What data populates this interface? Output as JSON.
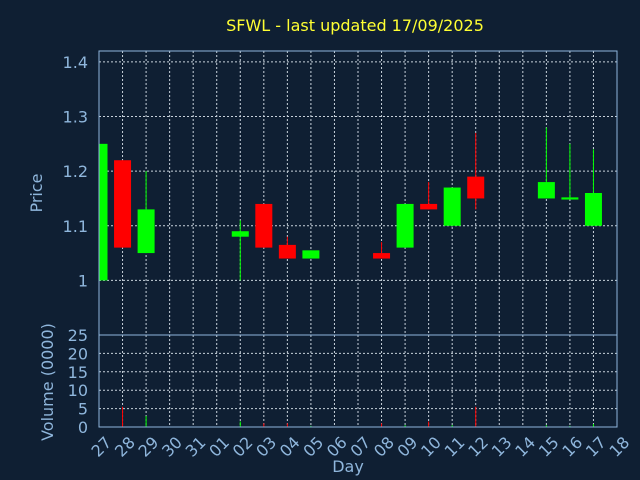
{
  "chart_data": {
    "type": "candlestick",
    "title": "SFWL - last updated 17/09/2025",
    "xlabel": "Day",
    "ylabel_price": "Price",
    "ylabel_volume": "Volume (0000)",
    "price_ylim": [
      0.9,
      1.42
    ],
    "price_ticks": [
      "1",
      "1.1",
      "1.2",
      "1.3",
      "1.4"
    ],
    "volume_ylim": [
      0,
      25
    ],
    "volume_ticks": [
      "0",
      "5",
      "10",
      "15",
      "20",
      "25"
    ],
    "grid": true,
    "colors": {
      "up": "#00ff00",
      "down": "#ff0000",
      "title": "#ffff33",
      "text": "#8fb6dc",
      "background": "#0f1f33"
    },
    "x_labels": [
      "27",
      "28",
      "29",
      "30",
      "31",
      "01",
      "02",
      "03",
      "04",
      "05",
      "06",
      "07",
      "08",
      "09",
      "10",
      "11",
      "12",
      "13",
      "14",
      "15",
      "16",
      "17",
      "18"
    ],
    "candles": [
      {
        "day": "27",
        "open": 1.0,
        "high": 1.25,
        "low": 1.0,
        "close": 1.25,
        "volume": 0.5
      },
      {
        "day": "28",
        "open": 1.22,
        "high": 1.22,
        "low": 1.06,
        "close": 1.06,
        "volume": 5.5
      },
      {
        "day": "29",
        "open": 1.05,
        "high": 1.2,
        "low": 1.05,
        "close": 1.13,
        "volume": 3.0
      },
      {
        "day": "02",
        "open": 1.08,
        "high": 1.11,
        "low": 1.0,
        "close": 1.09,
        "volume": 1.5
      },
      {
        "day": "03",
        "open": 1.14,
        "high": 1.14,
        "low": 1.06,
        "close": 1.06,
        "volume": 1.0
      },
      {
        "day": "04",
        "open": 1.065,
        "high": 1.08,
        "low": 1.04,
        "close": 1.04,
        "volume": 1.0
      },
      {
        "day": "05",
        "open": 1.04,
        "high": 1.055,
        "low": 1.04,
        "close": 1.055,
        "volume": 0.3
      },
      {
        "day": "08",
        "open": 1.05,
        "high": 1.07,
        "low": 1.04,
        "close": 1.04,
        "volume": 1.0
      },
      {
        "day": "09",
        "open": 1.06,
        "high": 1.14,
        "low": 1.06,
        "close": 1.14,
        "volume": 0.5
      },
      {
        "day": "10",
        "open": 1.14,
        "high": 1.18,
        "low": 1.13,
        "close": 1.13,
        "volume": 1.5
      },
      {
        "day": "11",
        "open": 1.1,
        "high": 1.17,
        "low": 1.1,
        "close": 1.17,
        "volume": 0.5
      },
      {
        "day": "12",
        "open": 1.19,
        "high": 1.27,
        "low": 1.13,
        "close": 1.15,
        "volume": 5.5
      },
      {
        "day": "15",
        "open": 1.15,
        "high": 1.28,
        "low": 1.15,
        "close": 1.18,
        "volume": 0.5
      },
      {
        "day": "16",
        "open": 1.148,
        "high": 1.25,
        "low": 1.148,
        "close": 1.152,
        "volume": 0.3
      },
      {
        "day": "17",
        "open": 1.1,
        "high": 1.24,
        "low": 1.1,
        "close": 1.16,
        "volume": 0.8
      }
    ]
  }
}
